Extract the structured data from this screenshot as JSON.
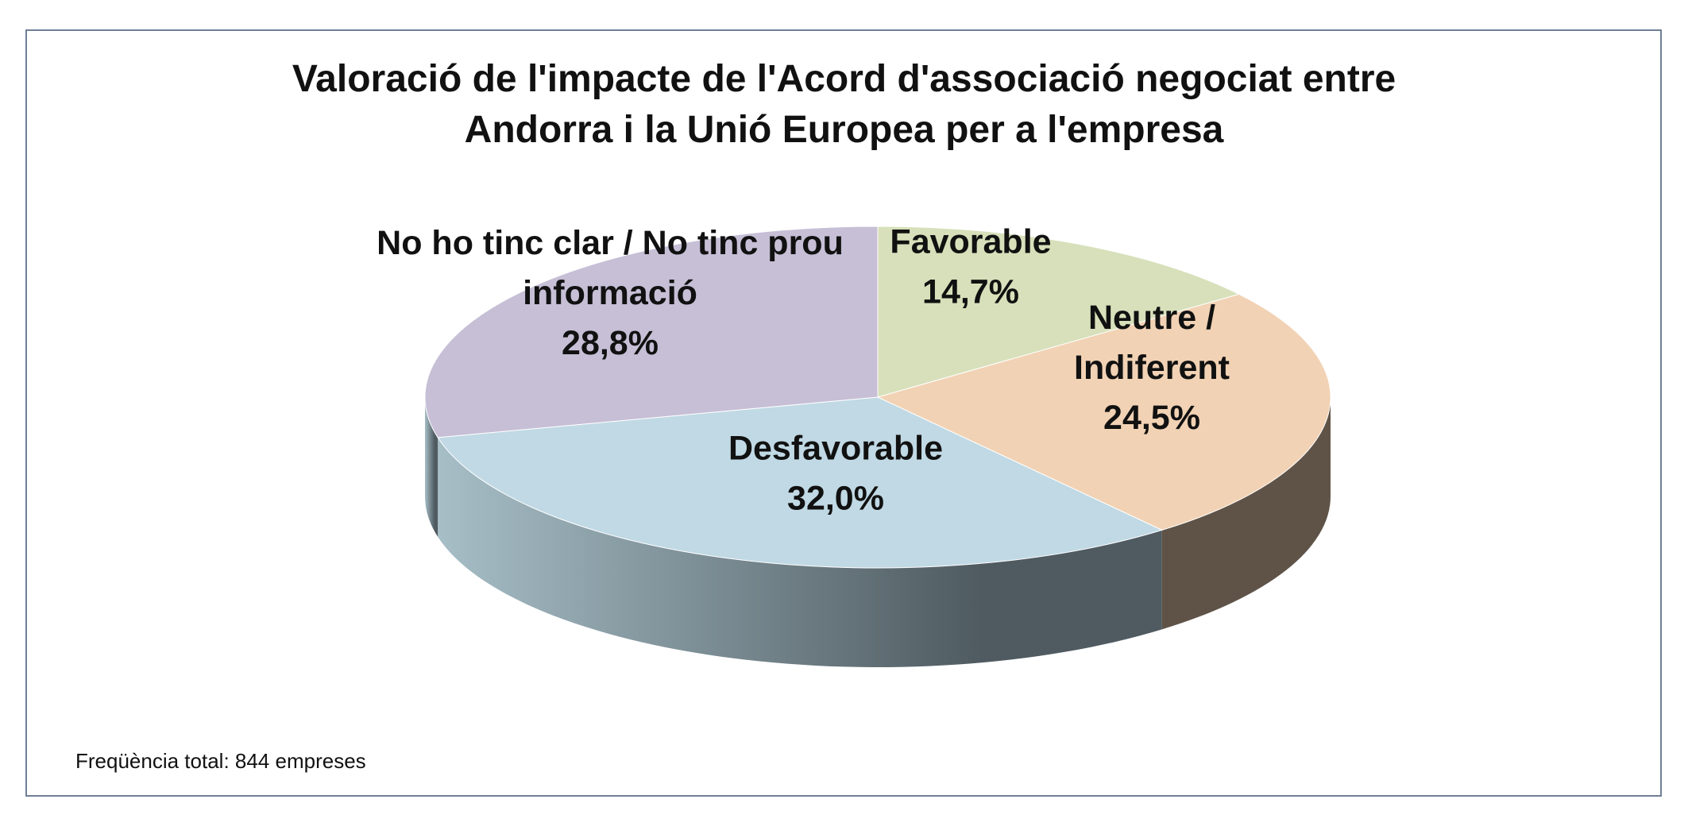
{
  "chart_data": {
    "type": "pie",
    "title_lines": [
      "Valoració de l'impacte de l'Acord d'associació negociat entre",
      "Andorra i la Unió Europea per a l'empresa"
    ],
    "slices": [
      {
        "name": "Favorable",
        "label_lines": [
          "Favorable"
        ],
        "value": 14.7,
        "value_label": "14,7%",
        "color": "#d7e0ba"
      },
      {
        "name": "Neutre / Indiferent",
        "label_lines": [
          "Neutre /",
          "Indiferent"
        ],
        "value": 24.5,
        "value_label": "24,5%",
        "color": "#f1d2b4"
      },
      {
        "name": "Desfavorable",
        "label_lines": [
          "Desfavorable"
        ],
        "value": 32.0,
        "value_label": "32,0%",
        "color": "#c0d9e4"
      },
      {
        "name": "No ho tinc clar / No tinc prou informació",
        "label_lines": [
          "No ho tinc clar / No tinc prou",
          "informació"
        ],
        "value": 28.8,
        "value_label": "28,8%",
        "color": "#c6bfd6"
      }
    ],
    "side_colors": {
      "front_light": "#a7bec7",
      "front_dark": "#4f5b61",
      "right_side": "#5f5347"
    },
    "footnote": "Freqüència total: 844 empreses"
  }
}
